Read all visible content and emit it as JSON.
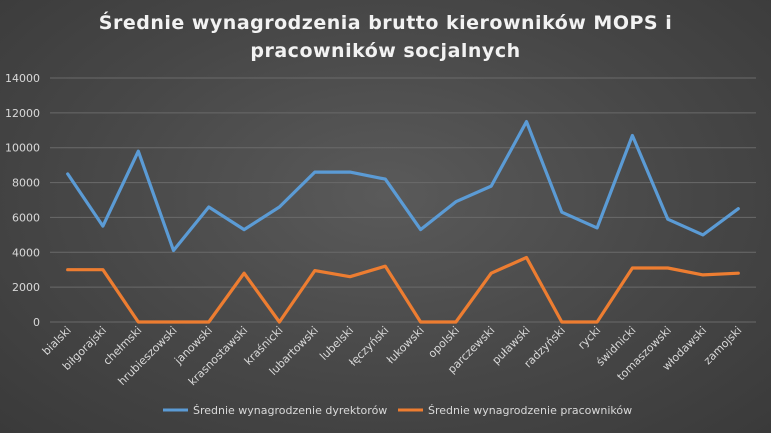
{
  "chart_data": {
    "type": "line",
    "title_lines": [
      "Średnie wynagrodzenia brutto kierowników MOPS i",
      "pracowników socjalnych"
    ],
    "categories": [
      "bialski",
      "biłgorajski",
      "chełmski",
      "hrubieszowski",
      "janowski",
      "krasnostawski",
      "kraśnicki",
      "lubartowski",
      "lubelski",
      "łęczyński",
      "łukowski",
      "opolski",
      "parczewski",
      "puławski",
      "radzyński",
      "rycki",
      "świdnicki",
      "tomaszowski",
      "włodawski",
      "zamojski"
    ],
    "ylim": [
      0,
      14000
    ],
    "yticks": [
      "0",
      "2000",
      "4000",
      "6000",
      "8000",
      "10000",
      "12000",
      "14000"
    ],
    "ytick_values": [
      0,
      2000,
      4000,
      6000,
      8000,
      10000,
      12000,
      14000
    ],
    "grid": true,
    "legend_position": "bottom",
    "series": [
      {
        "name": "Średnie wynagrodzenie dyrektorów",
        "color": "#5b9bd5",
        "values": [
          8500,
          5500,
          9800,
          4100,
          6600,
          5300,
          6600,
          8600,
          8600,
          8200,
          5300,
          6900,
          7800,
          11500,
          6300,
          5400,
          10700,
          5900,
          5000,
          6500
        ]
      },
      {
        "name": "Średnie wynagrodzenie pracowników",
        "color": "#ed7d31",
        "values": [
          3000,
          3000,
          0,
          0,
          0,
          2800,
          0,
          2950,
          2600,
          3200,
          0,
          0,
          2800,
          3700,
          0,
          0,
          3100,
          3100,
          2700,
          2800
        ]
      }
    ]
  }
}
